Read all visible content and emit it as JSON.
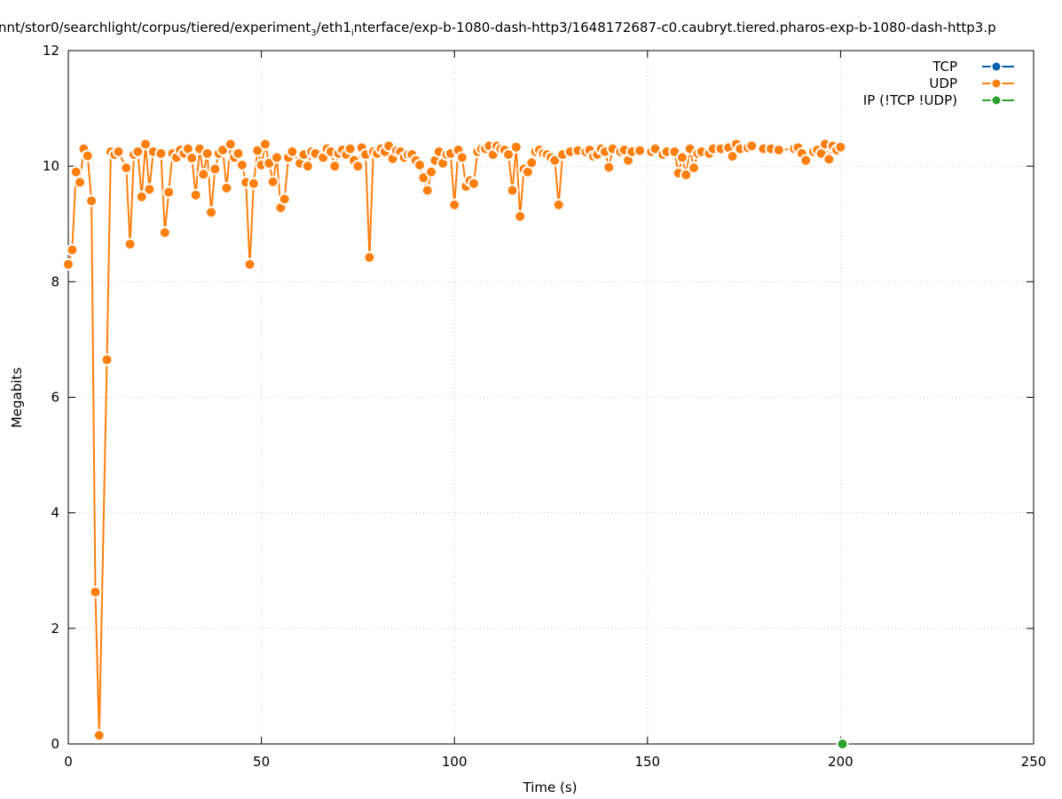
{
  "chart_data": {
    "type": "line",
    "title": [
      "nnt/stor0/searchlight/corpus/tiered/experiment",
      "3",
      "/eth1",
      "i",
      "nterface/exp-b-1080-dash-http3/1648172687-c0.caubryt.tiered.pharos-exp-b-1080-dash-http3.p"
    ],
    "xlabel": "Time (s)",
    "ylabel": "Megabits",
    "xlim": [
      0,
      250
    ],
    "ylim": [
      0,
      12
    ],
    "xticks": [
      0,
      50,
      100,
      150,
      200,
      250
    ],
    "yticks": [
      0,
      2,
      4,
      6,
      8,
      10,
      12
    ],
    "grid": true,
    "legend": "top-right",
    "series": [
      {
        "name": "TCP",
        "color": "#0060ad",
        "x": [],
        "values": []
      },
      {
        "name": "UDP",
        "color": "#ff7f0e",
        "x": [
          0,
          1,
          2,
          3,
          4,
          5,
          6,
          7,
          8,
          10,
          11,
          12,
          13,
          15,
          16,
          17,
          18,
          19,
          20,
          21,
          22,
          24,
          25,
          26,
          27,
          28,
          29,
          30,
          31,
          32,
          33,
          34,
          35,
          36,
          37,
          38,
          39,
          40,
          41,
          42,
          43,
          44,
          45,
          46,
          47,
          48,
          49,
          50,
          51,
          52,
          53,
          54,
          55,
          56,
          57,
          58,
          60,
          61,
          62,
          63,
          64,
          66,
          67,
          68,
          69,
          70,
          71,
          72,
          73,
          74,
          75,
          76,
          77,
          78,
          79,
          80,
          81,
          82,
          83,
          84,
          85,
          86,
          87,
          88,
          89,
          90,
          91,
          92,
          93,
          94,
          95,
          96,
          97,
          98,
          99,
          100,
          101,
          102,
          103,
          104,
          105,
          106,
          107,
          108,
          109,
          110,
          111,
          112,
          113,
          114,
          115,
          116,
          117,
          118,
          119,
          120,
          121,
          122,
          123,
          124,
          125,
          126,
          127,
          128,
          130,
          132,
          134,
          135,
          136,
          137,
          138,
          139,
          140,
          141,
          143,
          144,
          145,
          146,
          148,
          151,
          152,
          154,
          155,
          157,
          158,
          159,
          160,
          161,
          162,
          163,
          164,
          166,
          167,
          169,
          171,
          172,
          173,
          174,
          176,
          177,
          180,
          182,
          184,
          188,
          189,
          190,
          191,
          193,
          194,
          195,
          196,
          197,
          198,
          199,
          200
        ],
        "values": [
          8.3,
          8.55,
          9.9,
          9.72,
          10.3,
          10.18,
          9.4,
          2.63,
          0.15,
          6.65,
          10.25,
          10.2,
          10.25,
          9.97,
          8.65,
          10.2,
          10.25,
          9.47,
          10.38,
          9.6,
          10.25,
          10.22,
          8.85,
          9.55,
          10.22,
          10.15,
          10.28,
          10.22,
          10.3,
          10.14,
          9.5,
          10.3,
          9.86,
          10.22,
          9.2,
          9.95,
          10.22,
          10.28,
          9.62,
          10.38,
          10.15,
          10.22,
          10.02,
          9.72,
          8.3,
          9.7,
          10.27,
          10.02,
          10.38,
          10.05,
          9.73,
          10.15,
          9.28,
          9.43,
          10.15,
          10.25,
          10.05,
          10.2,
          10.0,
          10.25,
          10.22,
          10.15,
          10.3,
          10.25,
          10.0,
          10.22,
          10.28,
          10.2,
          10.3,
          10.1,
          10.0,
          10.32,
          10.2,
          8.42,
          10.25,
          10.22,
          10.3,
          10.25,
          10.35,
          10.13,
          10.27,
          10.25,
          10.15,
          10.2,
          10.2,
          10.1,
          10.02,
          9.8,
          9.58,
          9.9,
          10.1,
          10.25,
          10.05,
          10.2,
          10.22,
          9.33,
          10.28,
          10.15,
          9.65,
          9.75,
          9.7,
          10.25,
          10.3,
          10.3,
          10.35,
          10.2,
          10.35,
          10.3,
          10.28,
          10.2,
          9.58,
          10.33,
          9.13,
          9.95,
          9.9,
          10.06,
          10.25,
          10.28,
          10.22,
          10.2,
          10.15,
          10.1,
          9.33,
          10.2,
          10.25,
          10.27,
          10.25,
          10.28,
          10.17,
          10.2,
          10.3,
          10.25,
          9.98,
          10.3,
          10.25,
          10.28,
          10.1,
          10.25,
          10.27,
          10.25,
          10.3,
          10.2,
          10.25,
          10.25,
          9.88,
          10.15,
          9.85,
          10.3,
          9.97,
          10.22,
          10.25,
          10.22,
          10.3,
          10.3,
          10.32,
          10.17,
          10.38,
          10.3,
          10.32,
          10.35,
          10.3,
          10.3,
          10.28,
          10.3,
          10.32,
          10.22,
          10.1,
          10.25,
          10.28,
          10.22,
          10.38,
          10.12,
          10.35,
          10.28,
          10.33
        ]
      },
      {
        "name": "IP (!TCP  !UDP)",
        "color": "#2ca02c",
        "x": [
          200.5
        ],
        "values": [
          0
        ]
      }
    ]
  }
}
